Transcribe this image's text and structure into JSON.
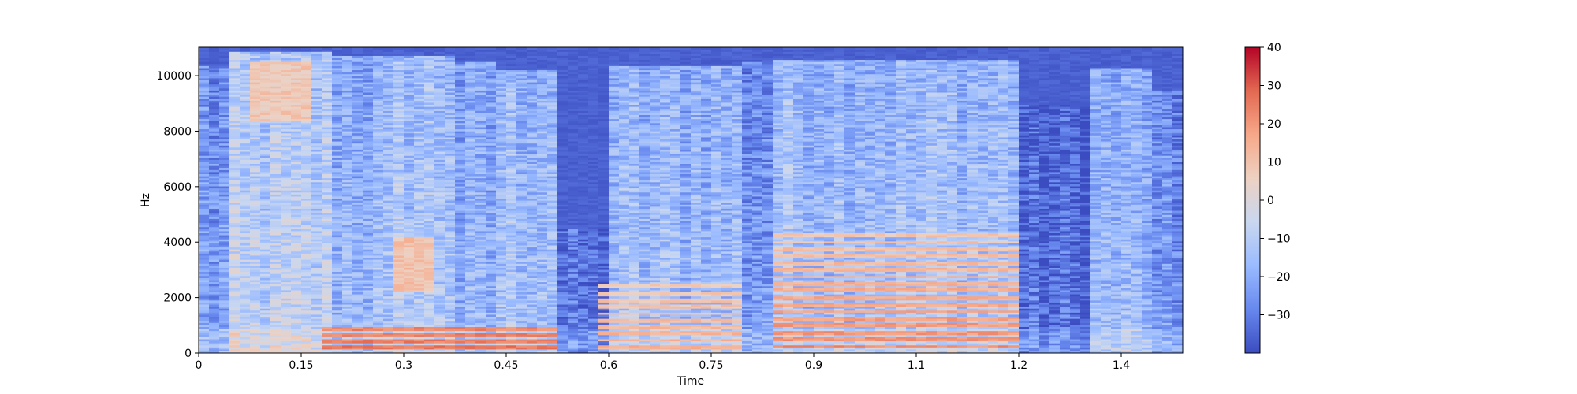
{
  "chart_data": {
    "type": "heatmap",
    "title": "",
    "xlabel": "Time",
    "ylabel": "Hz",
    "xlim": [
      0,
      1.44
    ],
    "ylim": [
      0,
      11025
    ],
    "x_ticks": [
      0,
      0.15,
      0.3,
      0.45,
      0.6,
      0.75,
      0.9,
      1.05,
      1.2,
      1.35
    ],
    "x_tick_labels": [
      "0",
      "0.15",
      "0.3",
      "0.45",
      "0.6",
      "0.75",
      "0.9",
      "1.1",
      "1.2",
      "1.4"
    ],
    "y_ticks": [
      0,
      2000,
      4000,
      6000,
      8000,
      10000
    ],
    "y_tick_labels": [
      "0",
      "2000",
      "4000",
      "6000",
      "8000",
      "10000"
    ],
    "colormap": "coolwarm",
    "colorbar": {
      "vmin": -40,
      "vmax": 40,
      "ticks": [
        40,
        30,
        20,
        10,
        0,
        -10,
        -20,
        -30
      ],
      "tick_labels": [
        "40",
        "30",
        "20",
        "10",
        "0",
        "−10",
        "−20",
        "−30"
      ],
      "colors": [
        "#3b4cc0",
        "#6788ee",
        "#9abbff",
        "#c9d7f0",
        "#edd1c2",
        "#f7a889",
        "#e26952",
        "#b40426"
      ]
    },
    "grid": false,
    "segments": [
      {
        "t": [
          0.0,
          0.045
        ],
        "level": -22,
        "fmax": 10400
      },
      {
        "t": [
          0.045,
          0.19
        ],
        "level": -8,
        "fmax": 10900,
        "hot": {
          "t": [
            0.07,
            0.16
          ],
          "f": [
            8400,
            10500
          ],
          "level": 8
        }
      },
      {
        "t": [
          0.19,
          0.28
        ],
        "level": -15,
        "fmax": 10700
      },
      {
        "t": [
          0.28,
          0.37
        ],
        "level": -10,
        "fmax": 10700,
        "hot": {
          "t": [
            0.29,
            0.35
          ],
          "f": [
            2200,
            4200
          ],
          "level": 10
        }
      },
      {
        "t": [
          0.37,
          0.44
        ],
        "level": -18,
        "fmax": 10500
      },
      {
        "t": [
          0.44,
          0.53
        ],
        "level": -12,
        "fmax": 10200
      },
      {
        "t": [
          0.53,
          0.6
        ],
        "level": -32,
        "fmax": 4500
      },
      {
        "t": [
          0.6,
          0.79
        ],
        "level": -14,
        "fmax": 10400
      },
      {
        "t": [
          0.79,
          0.84
        ],
        "level": -22,
        "fmax": 10500
      },
      {
        "t": [
          0.84,
          1.2
        ],
        "level": -12,
        "fmax": 10600
      },
      {
        "t": [
          1.2,
          1.31
        ],
        "level": -32,
        "fmax": 9000
      },
      {
        "t": [
          1.31,
          1.4
        ],
        "level": -16,
        "fmax": 10300
      },
      {
        "t": [
          1.4,
          1.44
        ],
        "level": -26,
        "fmax": 9500
      }
    ],
    "harmonics": [
      {
        "t": [
          0.18,
          0.52
        ],
        "f0": 220,
        "count": 4,
        "level": 26
      },
      {
        "t": [
          0.58,
          0.79
        ],
        "f0": 240,
        "count": 10,
        "level": 15
      },
      {
        "t": [
          0.84,
          1.2
        ],
        "f0": 250,
        "count": 17,
        "level": 22
      }
    ]
  }
}
